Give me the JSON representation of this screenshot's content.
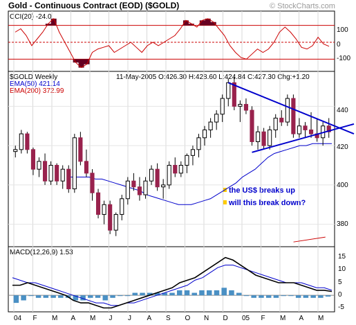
{
  "header": {
    "title": "Gold - Continuous Contract (EOD) ($GOLD)",
    "watermark": "© StockCharts.com"
  },
  "cci": {
    "label": "CCI(20) -24.0",
    "ticks": [
      "100",
      "0",
      "-100"
    ]
  },
  "price": {
    "label_symbol": "$GOLD Weekly",
    "quote": "11-May-2005 O:426.30 H:428.60 L:424.84 C:427.30 Chg:+1.20",
    "ema50_label": "EMA(50) 421.14",
    "ema200_label": "EMA(200) 372.99",
    "ticks": [
      "440",
      "420",
      "400",
      "380"
    ],
    "annotation_line1": "the US$ breaks up",
    "annotation_line2": "will this break down?"
  },
  "macd": {
    "label": "MACD(12,26,9) 1.53",
    "ticks": [
      "15",
      "10",
      "5",
      "0",
      "-5"
    ]
  },
  "xaxis": {
    "labels": [
      "04",
      "F",
      "M",
      "A",
      "M",
      "J",
      "J",
      "A",
      "S",
      "O",
      "N",
      "D",
      "05",
      "F",
      "M",
      "A",
      "M"
    ]
  },
  "colors": {
    "up_candle": "#ffffff",
    "down_candle": "#99224d",
    "ema50": "#0000cc",
    "ema200": "#cc0000",
    "trendline": "#0000cc",
    "cci_fill": "#660022",
    "macd_histogram": "#4a90c4"
  },
  "chart_data": [
    {
      "type": "line",
      "title": "CCI(20) -24.0",
      "ylim": [
        -160,
        160
      ],
      "reference_lines": [
        100,
        0,
        -100
      ],
      "series": [
        {
          "name": "CCI(20)",
          "values": [
            60,
            80,
            40,
            -20,
            20,
            60,
            110,
            140,
            60,
            0,
            -60,
            -120,
            -150,
            -130,
            -60,
            -40,
            -30,
            -20,
            -60,
            -40,
            -20,
            0,
            -30,
            -60,
            -20,
            0,
            -20,
            0,
            20,
            40,
            80,
            130,
            110,
            90,
            130,
            140,
            120,
            80,
            40,
            -20,
            -60,
            -90,
            -100,
            -70,
            -40,
            -60,
            -40,
            0,
            60,
            90,
            60,
            20,
            -30,
            -40,
            -20,
            30,
            -10,
            -24
          ]
        }
      ]
    },
    {
      "type": "candlestick",
      "title": "$GOLD Weekly",
      "ylim": [
        370,
        456
      ],
      "series": [
        {
          "name": "price",
          "ohlc": [
            [
              417,
              420,
              414,
              418
            ],
            [
              418,
              428,
              416,
              426
            ],
            [
              426,
              427,
              416,
              418
            ],
            [
              418,
              419,
              405,
              408
            ],
            [
              408,
              414,
              404,
              412
            ],
            [
              412,
              416,
              400,
              402
            ],
            [
              402,
              412,
              400,
              410
            ],
            [
              410,
              411,
              400,
              402
            ],
            [
              402,
              410,
              398,
              408
            ],
            [
              408,
              410,
              396,
              398
            ],
            [
              398,
              426,
              396,
              424
            ],
            [
              424,
              427,
              410,
              412
            ],
            [
              412,
              418,
              404,
              406
            ],
            [
              406,
              408,
              392,
              396
            ],
            [
              396,
              398,
              383,
              385
            ],
            [
              385,
              392,
              380,
              390
            ],
            [
              390,
              392,
              375,
              377
            ],
            [
              377,
              386,
              374,
              385
            ],
            [
              385,
              395,
              382,
              393
            ],
            [
              393,
              404,
              390,
              402
            ],
            [
              402,
              406,
              397,
              399
            ],
            [
              399,
              404,
              392,
              395
            ],
            [
              395,
              404,
              393,
              402
            ],
            [
              402,
              410,
              400,
              408
            ],
            [
              408,
              411,
              397,
              399
            ],
            [
              399,
              403,
              393,
              400
            ],
            [
              400,
              412,
              398,
              410
            ],
            [
              410,
              414,
              404,
              406
            ],
            [
              406,
              412,
              404,
              410
            ],
            [
              410,
              416,
              406,
              415
            ],
            [
              415,
              420,
              410,
              418
            ],
            [
              418,
              426,
              414,
              424
            ],
            [
              424,
              430,
              420,
              428
            ],
            [
              428,
              434,
              424,
              432
            ],
            [
              432,
              438,
              428,
              436
            ],
            [
              436,
              446,
              432,
              444
            ],
            [
              444,
              454,
              440,
              452
            ],
            [
              452,
              455,
              438,
              440
            ],
            [
              440,
              443,
              432,
              441
            ],
            [
              441,
              444,
              436,
              438
            ],
            [
              438,
              440,
              420,
              422
            ],
            [
              422,
              430,
              418,
              427
            ],
            [
              427,
              429,
              418,
              420
            ],
            [
              420,
              430,
              418,
              428
            ],
            [
              428,
              436,
              424,
              434
            ],
            [
              434,
              438,
              430,
              432
            ],
            [
              432,
              446,
              430,
              444
            ],
            [
              444,
              446,
              424,
              426
            ],
            [
              426,
              434,
              424,
              430
            ],
            [
              430,
              432,
              424,
              428
            ],
            [
              428,
              437,
              424,
              426
            ],
            [
              426,
              434,
              422,
              424
            ],
            [
              424,
              432,
              420,
              430
            ],
            [
              430,
              434,
              424,
              427
            ]
          ]
        },
        {
          "name": "EMA(50)",
          "values": [
            404,
            404,
            404,
            404,
            403,
            403,
            402,
            401,
            400,
            399,
            398,
            397,
            395,
            394,
            393,
            392,
            391,
            390,
            390,
            390,
            391,
            392,
            393,
            395,
            397,
            399,
            401,
            404,
            406,
            408,
            411,
            414,
            416,
            417,
            418,
            419,
            420,
            420,
            421,
            421,
            421,
            421
          ]
        },
        {
          "name": "EMA(200)",
          "values": [
            372.99
          ]
        },
        {
          "name": "upper trendline",
          "values": [
            452,
            426
          ]
        },
        {
          "name": "lower trendline",
          "values": [
            418,
            431
          ]
        }
      ]
    },
    {
      "type": "line",
      "title": "MACD(12,26,9) 1.53",
      "ylim": [
        -6,
        16
      ],
      "series": [
        {
          "name": "MACD",
          "values": [
            4,
            4,
            5,
            4,
            3,
            2,
            1,
            0,
            -2,
            -3,
            -3,
            -4,
            -5,
            -5,
            -4,
            -3,
            -2,
            -1,
            0,
            1,
            2,
            3,
            5,
            6,
            7,
            9,
            11,
            13,
            15,
            14,
            12,
            10,
            8,
            7,
            6,
            5,
            5,
            5,
            4,
            3,
            2,
            2,
            1.53
          ]
        },
        {
          "name": "Signal",
          "values": [
            7,
            6,
            5,
            5,
            4,
            3,
            2,
            1,
            0,
            -1,
            -2,
            -3,
            -3,
            -4,
            -4,
            -3,
            -3,
            -2,
            -1,
            0,
            1,
            2,
            3,
            4,
            6,
            7,
            9,
            11,
            12,
            12,
            11,
            10,
            9,
            8,
            7,
            6,
            5,
            5,
            5,
            4,
            3,
            3,
            2
          ]
        },
        {
          "name": "Histogram",
          "values": [
            -3,
            -2,
            0,
            -1,
            -1,
            -1,
            -1,
            -1,
            -2,
            -2,
            -1,
            -1,
            -2,
            -1,
            0,
            0,
            1,
            1,
            1,
            1,
            1,
            1,
            2,
            2,
            1,
            2,
            2,
            2,
            3,
            2,
            1,
            0,
            -1,
            -1,
            -1,
            -1,
            0,
            0,
            -1,
            -1,
            -1,
            -1,
            -0.5
          ]
        }
      ]
    }
  ]
}
